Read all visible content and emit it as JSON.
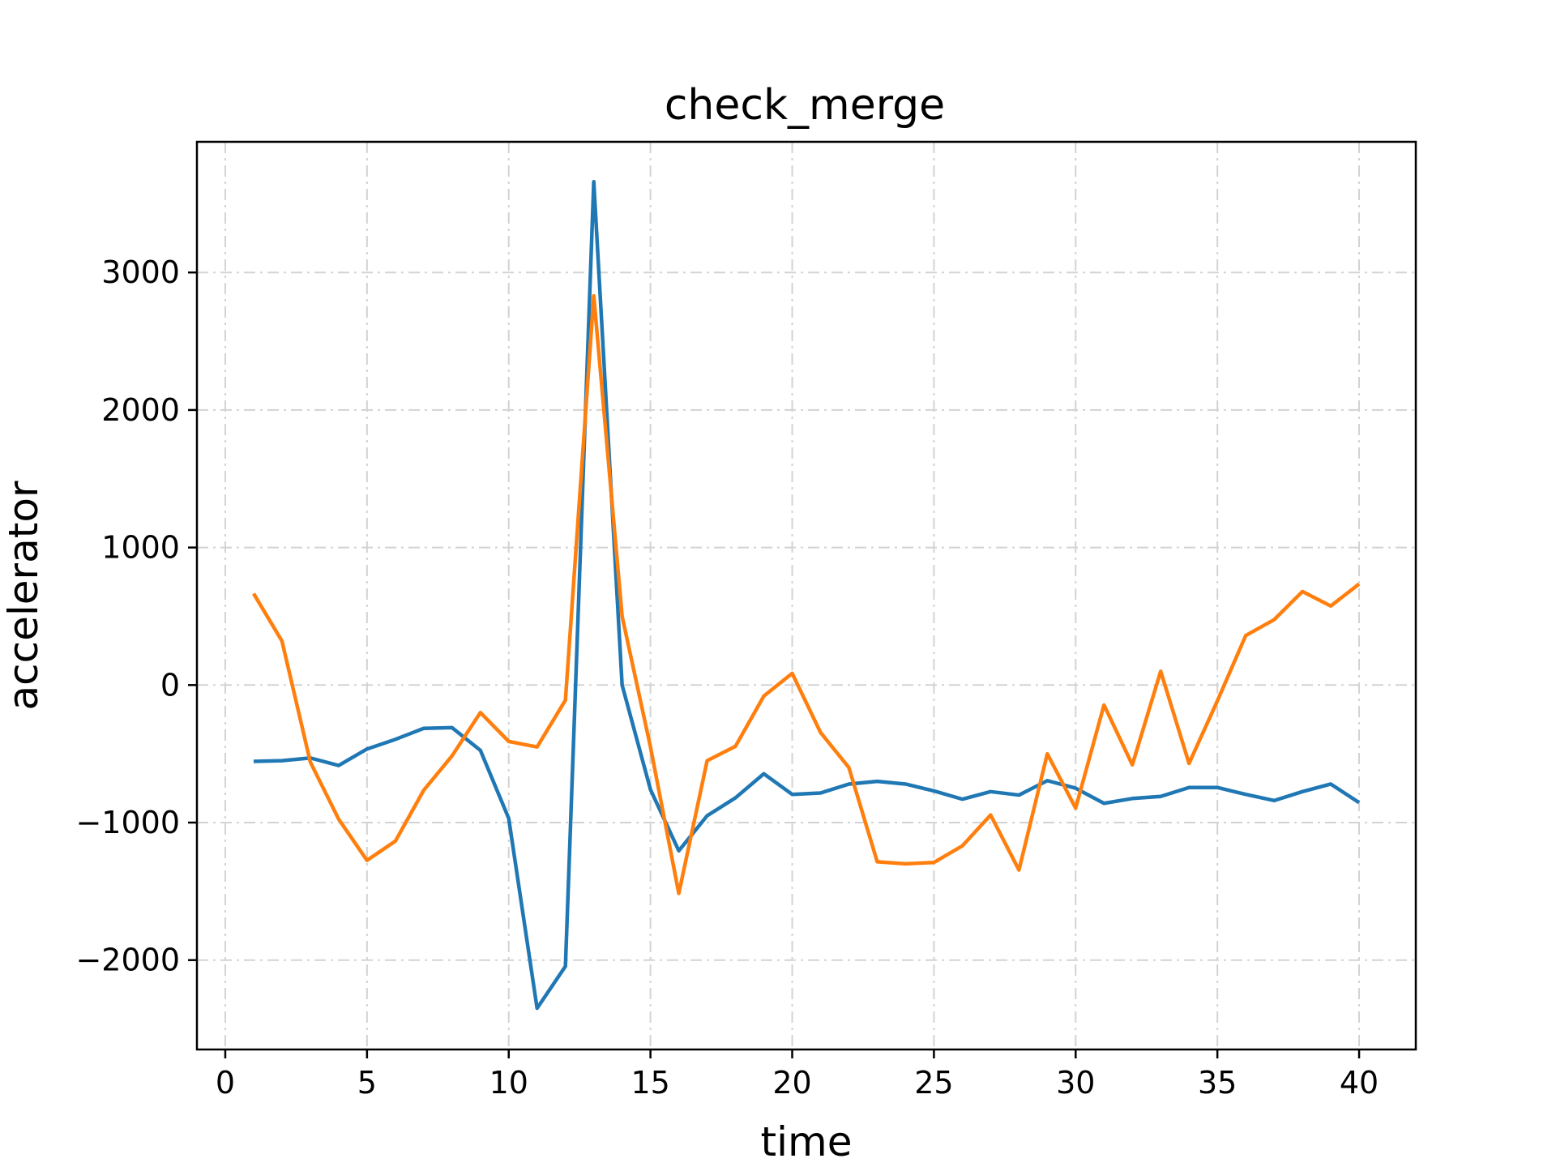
{
  "chart_data": {
    "type": "line",
    "title": "check_merge",
    "xlabel": "time",
    "ylabel": "accelerator",
    "xlim": [
      -1,
      42
    ],
    "ylim": [
      -2650,
      3950
    ],
    "xticks": [
      0,
      5,
      10,
      15,
      20,
      25,
      30,
      35,
      40
    ],
    "yticks": [
      -2000,
      -1000,
      0,
      1000,
      2000,
      3000
    ],
    "ytick_labels": [
      "−2000",
      "−1000",
      "0",
      "1000",
      "2000",
      "3000"
    ],
    "grid": true,
    "x": [
      1,
      2,
      3,
      4,
      5,
      6,
      7,
      8,
      9,
      10,
      11,
      12,
      13,
      14,
      15,
      16,
      17,
      18,
      19,
      20,
      21,
      22,
      23,
      24,
      25,
      26,
      27,
      28,
      29,
      30,
      31,
      32,
      33,
      34,
      35,
      36,
      37,
      38,
      39,
      40
    ],
    "series": [
      {
        "color": "#1f77b4",
        "values": [
          -555,
          -550,
          -530,
          -585,
          -465,
          -395,
          -315,
          -310,
          -475,
          -970,
          -2350,
          -2045,
          3660,
          0,
          -760,
          -1205,
          -950,
          -820,
          -645,
          -795,
          -785,
          -720,
          -700,
          -720,
          -770,
          -830,
          -775,
          -800,
          -695,
          -750,
          -860,
          -825,
          -810,
          -745,
          -745,
          -795,
          -840,
          -775,
          -720,
          -855
        ]
      },
      {
        "color": "#ff7f0e",
        "values": [
          665,
          320,
          -560,
          -975,
          -1275,
          -1135,
          -765,
          -515,
          -200,
          -410,
          -450,
          -110,
          2830,
          500,
          -450,
          -1515,
          -550,
          -445,
          -80,
          85,
          -345,
          -600,
          -1285,
          -1300,
          -1290,
          -1170,
          -945,
          -1345,
          -500,
          -895,
          -145,
          -580,
          100,
          -570,
          -115,
          360,
          475,
          680,
          575,
          735
        ]
      }
    ]
  }
}
